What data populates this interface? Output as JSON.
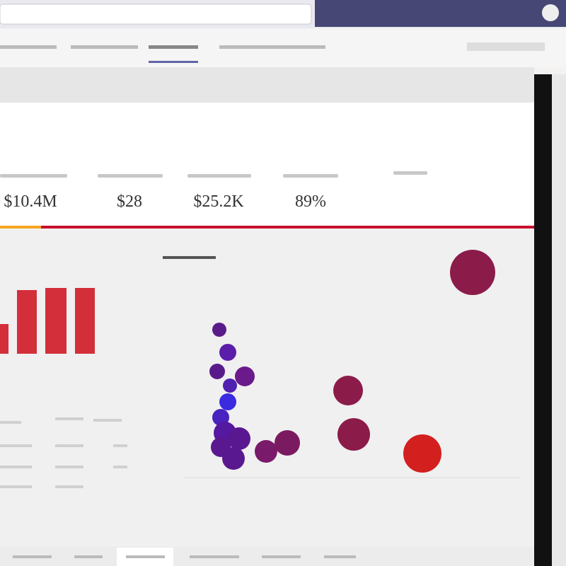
{
  "kpis": [
    {
      "value": "$10.4M"
    },
    {
      "value": "$28"
    },
    {
      "value": "$25.2K"
    },
    {
      "value": "89%"
    }
  ]
}
